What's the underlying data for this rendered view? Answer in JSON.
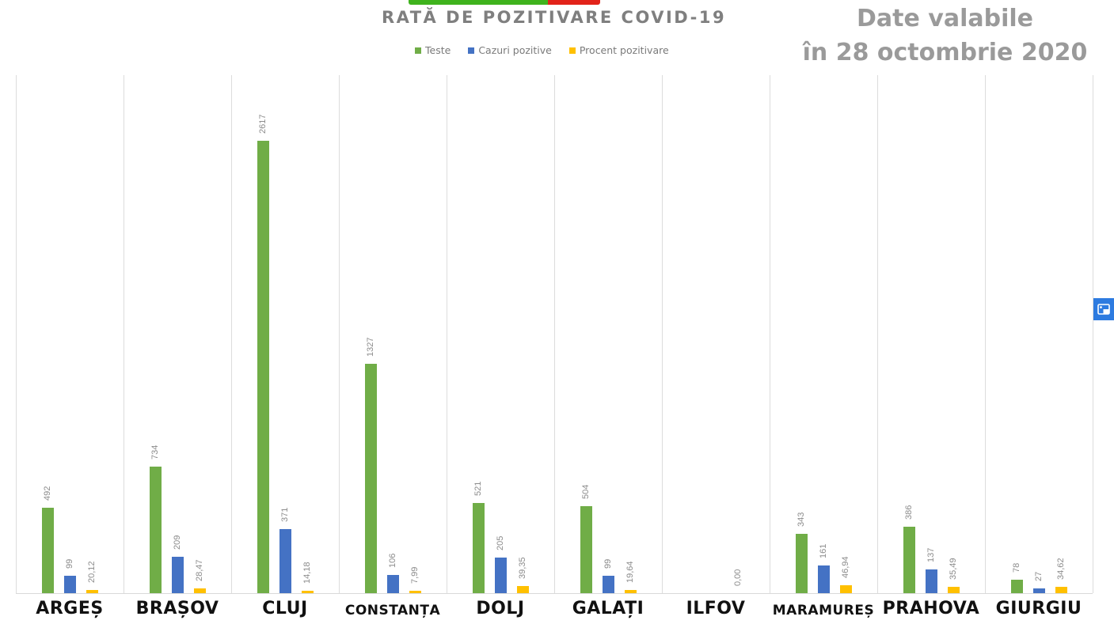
{
  "chart_data": {
    "type": "bar",
    "title": "RATĂ DE POZITIVARE COVID-19",
    "subtitle": "Date valabile în 28 octombrie 2020",
    "xlabel": "",
    "ylabel": "",
    "grid": {
      "vertical_separators": true,
      "horizontal": false
    },
    "legend_position": "top",
    "categories": [
      "ARGEȘ",
      "BRAȘOV",
      "CLUJ",
      "CONSTANȚA",
      "DOLJ",
      "GALAȚI",
      "ILFOV",
      "MARAMUREȘ",
      "PRAHOVA",
      "GIURGIU"
    ],
    "series": [
      {
        "name": "Teste",
        "color": "#70ad47",
        "values": [
          492,
          734,
          2617,
          1327,
          521,
          504,
          null,
          343,
          386,
          78
        ],
        "labels": [
          "492",
          "734",
          "2617",
          "1327",
          "521",
          "504",
          "",
          "343",
          "386",
          "78"
        ]
      },
      {
        "name": "Cazuri pozitive",
        "color": "#4472c4",
        "values": [
          99,
          209,
          371,
          106,
          205,
          99,
          null,
          161,
          137,
          27
        ],
        "labels": [
          "99",
          "209",
          "371",
          "106",
          "205",
          "99",
          "",
          "161",
          "137",
          "27"
        ]
      },
      {
        "name": "Procent pozitivare",
        "color": "#ffc000",
        "values": [
          20.12,
          28.47,
          14.18,
          7.99,
          39.35,
          19.64,
          0.0,
          46.94,
          35.49,
          34.62
        ],
        "labels": [
          "20,12",
          "28,47",
          "14,18",
          "7,99",
          "39,35",
          "19,64",
          "0,00",
          "46,94",
          "35,49",
          "34,62"
        ]
      }
    ],
    "ylim": [
      0,
      3000
    ]
  },
  "header": {
    "title": "RATĂ DE POZITIVARE COVID-19",
    "date_line1": "Date valabile",
    "date_line2": "în 28 octombrie 2020"
  },
  "legend": [
    {
      "label": "Teste",
      "color": "#70ad47"
    },
    {
      "label": "Cazuri pozitive",
      "color": "#4472c4"
    },
    {
      "label": "Procent pozitivare",
      "color": "#ffc000"
    }
  ],
  "colors": {
    "banner_green": "#3fb31d",
    "banner_red": "#e2231a",
    "side_button": "#2d7be0"
  },
  "side_button": {
    "icon": "picture-in-picture-icon"
  }
}
